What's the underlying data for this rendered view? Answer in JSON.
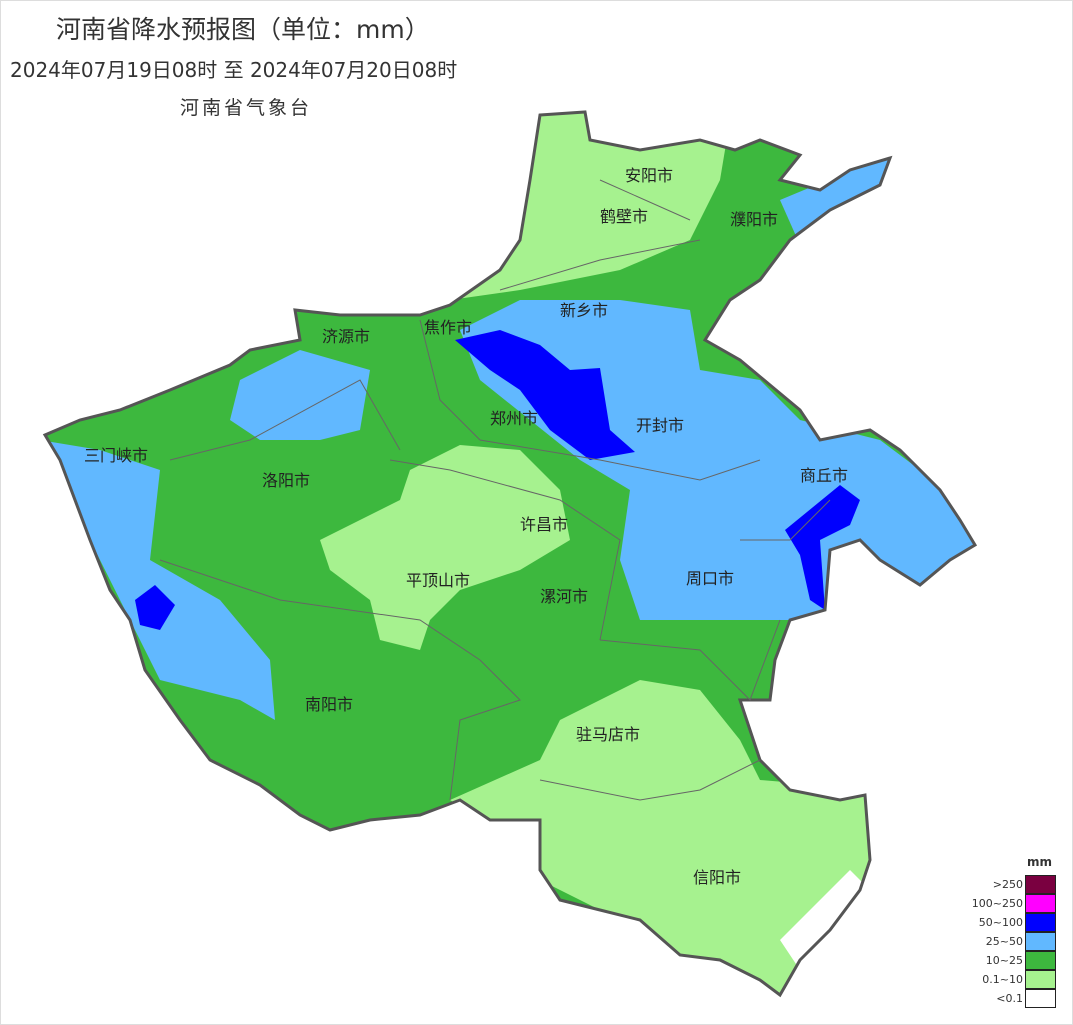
{
  "header": {
    "title": "河南省降水预报图（单位：mm）",
    "period": "2024年07月19日08时  至  2024年07月20日08时",
    "issuer": "河南省气象台"
  },
  "map": {
    "cities": [
      "安阳市",
      "鹤壁市",
      "濮阳市",
      "新乡市",
      "焦作市",
      "济源市",
      "郑州市",
      "开封市",
      "三门峡市",
      "洛阳市",
      "商丘市",
      "许昌市",
      "平顶山市",
      "漯河市",
      "周口市",
      "南阳市",
      "驻马店市",
      "信阳市"
    ],
    "colors": {
      "none": "#ffffff",
      "light": "#a6f28f",
      "moderate": "#3db83e",
      "heavy": "#61b8ff",
      "rainstorm": "#0000fe",
      "heavy_rainstorm": "#ff00ff",
      "extreme": "#7a0040",
      "border": "#555555"
    }
  },
  "legend": {
    "unit": "mm",
    "items": [
      {
        "label": ">250",
        "color": "#7a0040"
      },
      {
        "label": "100~250",
        "color": "#ff00ff"
      },
      {
        "label": "50~100",
        "color": "#0000fe"
      },
      {
        "label": "25~50",
        "color": "#61b8ff"
      },
      {
        "label": "10~25",
        "color": "#3db83e"
      },
      {
        "label": "0.1~10",
        "color": "#a6f28f"
      },
      {
        "label": "<0.1",
        "color": "#ffffff"
      }
    ]
  }
}
